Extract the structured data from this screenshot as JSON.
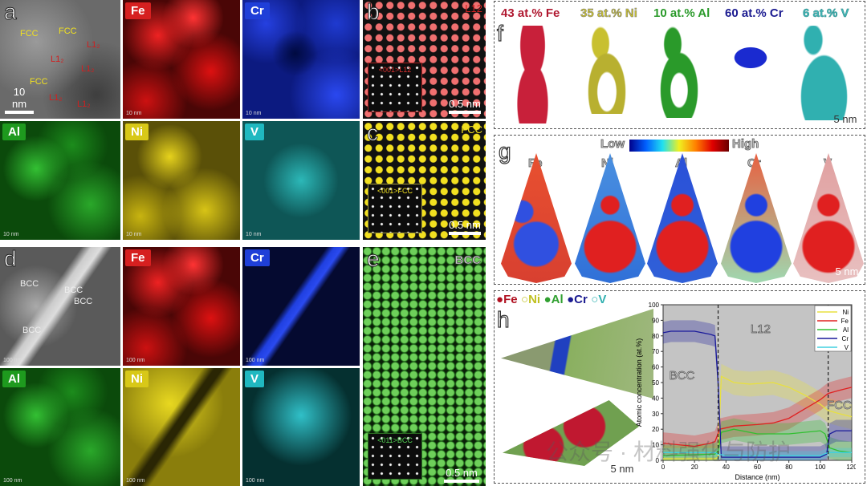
{
  "panels": {
    "a": {
      "label": "a",
      "scale": "10 nm",
      "phases": [
        {
          "t": "FCC",
          "c": "#f0e020"
        },
        {
          "t": "FCC",
          "c": "#f0e020"
        },
        {
          "t": "FCC",
          "c": "#f0e020"
        },
        {
          "t": "L1₂",
          "c": "#d02020"
        },
        {
          "t": "L1₂",
          "c": "#d02020"
        },
        {
          "t": "L1₂",
          "c": "#d02020"
        },
        {
          "t": "L1₂",
          "c": "#d02020"
        },
        {
          "t": "L1₂",
          "c": "#d02020"
        }
      ],
      "maps": [
        {
          "el": "Fe",
          "sb": "10 nm",
          "color": "#d62020"
        },
        {
          "el": "Cr",
          "sb": "10 nm",
          "color": "#1f3fd8"
        },
        {
          "el": "Al",
          "sb": "10 nm",
          "color": "#1e9a1e"
        },
        {
          "el": "Ni",
          "sb": "10 nm",
          "color": "#d8c818"
        },
        {
          "el": "V",
          "sb": "10 nm",
          "color": "#20b8c0"
        }
      ]
    },
    "b": {
      "label": "b",
      "phase": "L12",
      "inset": "<001>L12",
      "scale": "0.5 nm"
    },
    "c": {
      "label": "c",
      "phase": "FCC",
      "inset": "<001>FCC",
      "scale": "0.5 nm"
    },
    "d": {
      "label": "d",
      "phases": [
        "BCC",
        "BCC",
        "BCC",
        "BCC"
      ],
      "sb": "100 nm",
      "maps": [
        {
          "el": "Fe",
          "sb": "100 nm",
          "color": "#d62020"
        },
        {
          "el": "Cr",
          "sb": "100 nm",
          "color": "#1f3fd8"
        },
        {
          "el": "Al",
          "sb": "100 nm",
          "color": "#1e9a1e"
        },
        {
          "el": "Ni",
          "sb": "100 nm",
          "color": "#d8c818"
        },
        {
          "el": "V",
          "sb": "100 nm",
          "color": "#20b8c0"
        }
      ]
    },
    "e": {
      "label": "e",
      "phase": "BCC",
      "inset": "<011>BCC",
      "scale": "0.5 nm"
    },
    "f": {
      "label": "f",
      "isosurfaces": [
        {
          "t": "43 at.% Fe",
          "c": "#c8203a"
        },
        {
          "t": "35 at.% Ni",
          "c": "#c8c030"
        },
        {
          "t": "10 at.% Al",
          "c": "#2a9a2a"
        },
        {
          "t": "60 at.% Cr",
          "c": "#1a1aa0"
        },
        {
          "t": "6 at.% V",
          "c": "#30b0b0"
        }
      ],
      "scale": "5 nm"
    },
    "g": {
      "label": "g",
      "colorbar_low": "Low",
      "colorbar_high": "High",
      "elements": [
        "Fe",
        "Ni",
        "Al",
        "Cr",
        "V"
      ],
      "scale": "5 nm"
    },
    "h": {
      "label": "h",
      "legend": [
        {
          "t": "Fe",
          "c": "#b01020"
        },
        {
          "t": "Ni",
          "c": "#c0c020"
        },
        {
          "t": "Al",
          "c": "#30a030"
        },
        {
          "t": "Cr",
          "c": "#1a1a90"
        },
        {
          "t": "V",
          "c": "#30b0b0"
        }
      ],
      "scale": "5 nm"
    }
  },
  "watermark": "公众号 · 材料强化与防护",
  "chart_data": {
    "type": "line",
    "xlabel": "Distance (nm)",
    "ylabel": "Atomic concentration (at.%)",
    "xlim": [
      0,
      120
    ],
    "ylim": [
      0,
      100
    ],
    "xticks": [
      0,
      20,
      40,
      60,
      80,
      100,
      120
    ],
    "yticks": [
      0,
      10,
      20,
      30,
      40,
      50,
      60,
      70,
      80,
      90,
      100
    ],
    "grid": false,
    "legend_position": "top-right",
    "background": "#c4c4c4",
    "boundaries": [
      35,
      105
    ],
    "region_labels": [
      {
        "t": "BCC",
        "x": 12,
        "y": 52
      },
      {
        "t": "L12",
        "x": 62,
        "y": 82
      },
      {
        "t": "FCC",
        "x": 112,
        "y": 33
      }
    ],
    "series": [
      {
        "name": "Ni",
        "color": "#e8e040",
        "err": 8,
        "x": [
          0,
          33,
          35,
          37,
          45,
          55,
          70,
          80,
          90,
          100,
          105,
          112,
          120
        ],
        "y": [
          1,
          1,
          2,
          54,
          50,
          49,
          50,
          47,
          42,
          36,
          32,
          30,
          28
        ]
      },
      {
        "name": "Fe",
        "color": "#e02020",
        "err": 7,
        "x": [
          0,
          10,
          20,
          30,
          33,
          36,
          45,
          60,
          70,
          80,
          90,
          100,
          105,
          112,
          120
        ],
        "y": [
          11,
          10,
          9,
          11,
          12,
          20,
          22,
          23,
          24,
          27,
          33,
          39,
          43,
          45,
          47
        ]
      },
      {
        "name": "Al",
        "color": "#30c030",
        "err": 7,
        "x": [
          0,
          33,
          35,
          37,
          45,
          60,
          80,
          100,
          103,
          106,
          112,
          120
        ],
        "y": [
          3,
          4,
          6,
          18,
          20,
          17,
          17,
          19,
          17,
          8,
          6,
          5
        ]
      },
      {
        "name": "Cr",
        "color": "#1a1a9a",
        "err": 7,
        "x": [
          0,
          5,
          20,
          30,
          33,
          35,
          37,
          60,
          80,
          100,
          104,
          106,
          110,
          120
        ],
        "y": [
          82,
          83,
          83,
          81,
          80,
          50,
          2,
          2,
          2,
          2,
          4,
          17,
          19,
          19
        ]
      },
      {
        "name": "V",
        "color": "#40d0e0",
        "err": 3,
        "x": [
          0,
          33,
          35,
          40,
          60,
          80,
          100,
          105,
          112,
          120
        ],
        "y": [
          5,
          5,
          4,
          3,
          3,
          3,
          3,
          5,
          5,
          5
        ]
      }
    ]
  }
}
